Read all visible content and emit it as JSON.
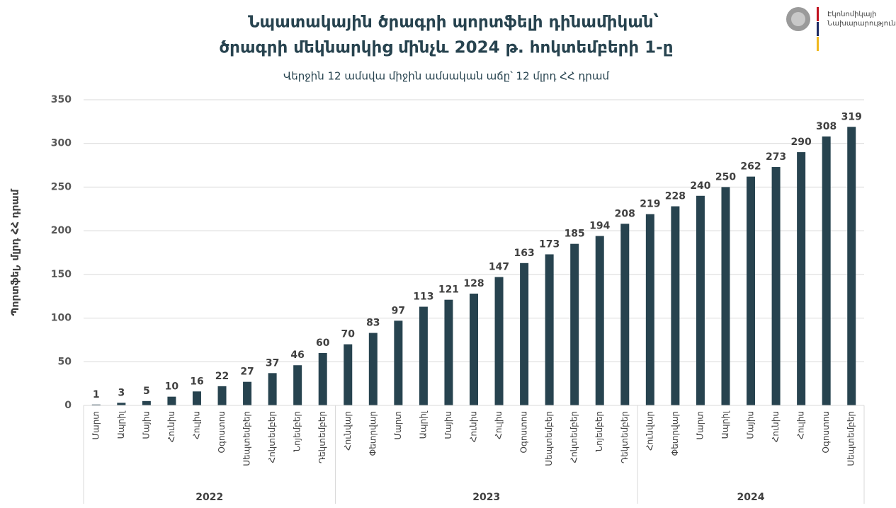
{
  "logo": {
    "line1": "Էկոնոմիկայի",
    "line2": "Նախարարություն"
  },
  "chart_data": {
    "type": "bar",
    "title": [
      "Նպատակային ծրագրի պորտֆելի դինամիկան՝",
      "ծրագրի մեկնարկից մինչև 2024 թ. հոկտեմբերի 1-ը"
    ],
    "subtitle": "Վերջին 12 ամսվա միջին ամսական աճը՝ 12 մլրդ ՀՀ դրամ",
    "y_label": "Պորտֆել, մլրդ ՀՀ դրամ",
    "color": "#27434f",
    "grid": true,
    "ylim": [
      0,
      350
    ],
    "yticks": [
      0,
      50,
      100,
      150,
      200,
      250,
      300,
      350
    ],
    "category_groups": [
      {
        "name": "2022",
        "categories": [
          "Մարտ",
          "Ապրիլ",
          "Մայիս",
          "Հունիս",
          "Հուլիս",
          "Օգոստոս",
          "Սեպտեմբեր",
          "Հոկտեմբեր",
          "Նոյեմբեր",
          "Դեկտեմբեր"
        ]
      },
      {
        "name": "2023",
        "categories": [
          "Հունվար",
          "Փետրվար",
          "Մարտ",
          "Ապրիլ",
          "Մայիս",
          "Հունիս",
          "Հուլիս",
          "Օգոստոս",
          "Սեպտեմբեր",
          "Հոկտեմբեր",
          "Նոյեմբեր",
          "Դեկտեմբեր"
        ]
      },
      {
        "name": "2024",
        "categories": [
          "Հունվար",
          "Փետրվար",
          "Մարտ",
          "Ապրիլ",
          "Մայիս",
          "Հունիս",
          "Հուլիս",
          "Օգոստոս",
          "Սեպտեմբեր"
        ]
      }
    ],
    "values": [
      1,
      3,
      5,
      10,
      16,
      22,
      27,
      37,
      46,
      60,
      70,
      83,
      97,
      113,
      121,
      128,
      147,
      163,
      173,
      185,
      194,
      208,
      219,
      228,
      240,
      250,
      262,
      273,
      290,
      308,
      319
    ]
  }
}
